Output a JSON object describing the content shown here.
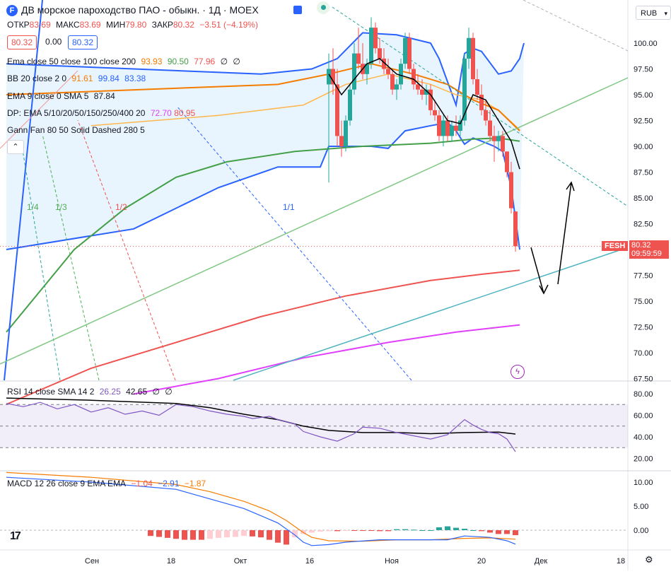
{
  "header": {
    "title": "ДВ морское пароходство ПАО - обыкн. · 1Д · MOEX",
    "ohlc": [
      {
        "label": "ОТКР",
        "value": "83.69"
      },
      {
        "label": "МАКС",
        "value": "83.69"
      },
      {
        "label": "МИН",
        "value": "79.80"
      },
      {
        "label": "ЗАКР",
        "value": "80.32"
      }
    ],
    "change": "−3.51 (−4.19%)",
    "bid": "80.32",
    "spread": "0.00",
    "ask": "80.32",
    "currency": "RUB",
    "logo_glyph": "F"
  },
  "legend": {
    "ema": {
      "label": "Ema close 50 close 100 close 200",
      "v1": "93.93",
      "v2": "90.50",
      "v3": "77.96",
      "v4": "∅",
      "v5": "∅"
    },
    "bb": {
      "label": "BB 20 close 2 0",
      "v1": "91.61",
      "v2": "99.84",
      "v3": "83.38"
    },
    "ema9": {
      "label": "EMA 9 close 0 SMA 5",
      "v1": "87.84"
    },
    "dp": {
      "label": "DP: EMA 5/10/20/50/150/250/400 20",
      "v1": "72.70",
      "v2": "80.95"
    },
    "gann": {
      "label": "Gann Fan 80 50 Solid Dashed 280 5"
    }
  },
  "price_label": {
    "ticker": "FESH",
    "price": "80.32",
    "countdown": "09:59:59"
  },
  "rsi": {
    "label": "RSI 14 close SMA 14 2",
    "v1": "26.25",
    "v2": "42.65",
    "v3": "∅",
    "v4": "∅"
  },
  "macd": {
    "label": "MACD 12 26 close 9 EMA EMA",
    "v1": "−1.04",
    "v2": "−2.91",
    "v3": "−1.87"
  },
  "fan_labels": [
    "1/4",
    "1/3",
    "1/2",
    "1/1"
  ],
  "colors": {
    "up": "#26a69a",
    "down": "#ef5350",
    "bb": "#2962ff",
    "ema50": "#f57c00",
    "ema100": "#4caf50",
    "ema200": "#ef5350",
    "dp": "#e040fb",
    "ema9": "#000000"
  },
  "chart_data": [
    {
      "type": "candlestick",
      "title": "ДВ морское пароходство ПАО - обыкн. · 1Д · MOEX",
      "ylim": [
        67.5,
        102.5
      ],
      "yticks": [
        "100.00",
        "97.50",
        "95.00",
        "92.50",
        "90.00",
        "87.50",
        "85.00",
        "82.50",
        "77.50",
        "75.00",
        "72.50",
        "70.00",
        "67.50"
      ],
      "xticks": [
        "Сен",
        "18",
        "Окт",
        "16",
        "Ноя",
        "20",
        "Дек",
        "18"
      ],
      "last_close": 80.32,
      "candles": [
        [
          18.0,
          96.0,
          99.0,
          86.5,
          97.5
        ],
        [
          18.5,
          97.5,
          99.5,
          95.0,
          96.0
        ],
        [
          19.0,
          96.0,
          97.5,
          90.0,
          91.0
        ],
        [
          19.5,
          91.0,
          92.5,
          89.0,
          90.0
        ],
        [
          20.0,
          90.0,
          93.0,
          89.5,
          92.5
        ],
        [
          20.5,
          92.5,
          96.0,
          92.0,
          95.5
        ],
        [
          21.0,
          95.5,
          100.0,
          95.0,
          99.0
        ],
        [
          21.5,
          99.0,
          101.5,
          97.5,
          98.0
        ],
        [
          22.0,
          98.0,
          100.0,
          96.5,
          97.0
        ],
        [
          22.5,
          97.0,
          98.5,
          96.0,
          98.0
        ],
        [
          23.0,
          98.0,
          102.5,
          97.5,
          101.5
        ],
        [
          23.5,
          101.5,
          102.0,
          99.0,
          99.5
        ],
        [
          24.0,
          99.5,
          100.5,
          98.0,
          98.5
        ],
        [
          24.5,
          98.5,
          99.5,
          97.0,
          97.5
        ],
        [
          25.0,
          97.5,
          98.5,
          96.5,
          97.0
        ],
        [
          25.5,
          97.0,
          97.5,
          95.0,
          95.5
        ],
        [
          26.0,
          95.5,
          96.5,
          94.5,
          96.0
        ],
        [
          26.5,
          96.0,
          98.5,
          95.5,
          98.0
        ],
        [
          27.0,
          98.0,
          101.0,
          97.5,
          100.5
        ],
        [
          27.5,
          100.5,
          101.0,
          97.0,
          97.5
        ],
        [
          28.0,
          97.5,
          98.0,
          95.5,
          96.0
        ],
        [
          28.5,
          96.0,
          97.0,
          95.0,
          95.5
        ],
        [
          29.0,
          95.5,
          96.5,
          94.5,
          95.0
        ],
        [
          29.5,
          95.0,
          96.0,
          94.0,
          95.5
        ],
        [
          30.0,
          95.5,
          96.0,
          93.0,
          93.5
        ],
        [
          30.5,
          93.5,
          94.5,
          92.5,
          93.0
        ],
        [
          31.0,
          93.0,
          93.5,
          90.5,
          91.0
        ],
        [
          31.5,
          91.0,
          93.0,
          90.0,
          92.5
        ],
        [
          32.0,
          92.5,
          93.0,
          90.5,
          91.0
        ],
        [
          32.5,
          91.0,
          92.5,
          90.5,
          92.0
        ],
        [
          33.0,
          92.0,
          93.0,
          91.0,
          91.5
        ],
        [
          33.5,
          91.5,
          93.0,
          91.0,
          92.5
        ],
        [
          34.0,
          92.5,
          99.0,
          92.0,
          98.5
        ],
        [
          34.5,
          98.5,
          101.5,
          97.5,
          100.5
        ],
        [
          35.0,
          100.5,
          101.0,
          96.0,
          96.5
        ],
        [
          35.5,
          96.5,
          97.5,
          94.5,
          95.0
        ],
        [
          36.0,
          95.0,
          96.0,
          93.0,
          93.5
        ],
        [
          36.5,
          93.5,
          94.5,
          92.0,
          92.5
        ],
        [
          37.0,
          92.5,
          93.5,
          90.5,
          91.0
        ],
        [
          37.5,
          91.0,
          92.0,
          88.5,
          90.5
        ],
        [
          38.0,
          90.5,
          91.5,
          89.5,
          91.0
        ],
        [
          38.5,
          91.0,
          91.5,
          89.0,
          89.5
        ],
        [
          39.0,
          89.5,
          89.5,
          87.0,
          87.5
        ],
        [
          39.5,
          87.5,
          88.5,
          83.5,
          84.0
        ],
        [
          40.0,
          83.69,
          83.69,
          79.8,
          80.32
        ]
      ]
    },
    {
      "type": "line",
      "title": "RSI 14 close SMA 14 2",
      "ylim": [
        15,
        85
      ],
      "yticks": [
        "80.00",
        "60.00",
        "40.00",
        "20.00"
      ],
      "bands": [
        70,
        50,
        30
      ],
      "series": [
        {
          "values": [
            [
              0,
              70.0
            ],
            [
              2.0,
              68.0
            ],
            [
              4.0,
              64.0
            ],
            [
              6.0,
              61.0
            ],
            [
              8.0,
              59.0
            ],
            [
              9.0,
              57.0
            ],
            [
              11.0,
              59.0
            ],
            [
              12.0,
              56.0
            ],
            [
              14.0,
              52.0
            ],
            [
              15.0,
              45.0
            ],
            [
              17.0,
              40.0
            ],
            [
              19.0,
              36.0
            ],
            [
              21.0,
              43.0
            ],
            [
              22.0,
              49.0
            ],
            [
              24.0,
              48.0
            ],
            [
              26.0,
              44.0
            ],
            [
              28.0,
              41.0
            ],
            [
              30.0,
              38.0
            ],
            [
              32.0,
              42.0
            ],
            [
              34.0,
              56.0
            ],
            [
              35.0,
              51.0
            ],
            [
              36.0,
              47.0
            ],
            [
              37.0,
              44.0
            ],
            [
              38.0,
              43.0
            ],
            [
              39.0,
              38.0
            ],
            [
              40.0,
              26.25
            ]
          ]
        },
        {
          "values": [
            [
              0,
              71.0
            ],
            [
              4.0,
              67.0
            ],
            [
              8.0,
              61.0
            ],
            [
              12.0,
              56.0
            ],
            [
              15.0,
              50.0
            ],
            [
              18.0,
              46.0
            ],
            [
              22.0,
              44.0
            ],
            [
              26.0,
              44.0
            ],
            [
              30.0,
              43.0
            ],
            [
              34.0,
              44.0
            ],
            [
              38.0,
              44.5
            ],
            [
              40.0,
              42.65
            ]
          ]
        }
      ]
    },
    {
      "type": "bar+line",
      "title": "MACD 12 26 close 9 EMA EMA",
      "ylim": [
        -4,
        13
      ],
      "yticks": [
        "10.00",
        "5.00",
        "0.00"
      ],
      "macd_line": [
        [
          0,
          8.5
        ],
        [
          3.0,
          7.0
        ],
        [
          6.0,
          5.5
        ],
        [
          8.0,
          4.5
        ],
        [
          10.0,
          3.0
        ],
        [
          12.0,
          1.5
        ],
        [
          14.0,
          -1.0
        ],
        [
          15.0,
          -2.5
        ],
        [
          16.0,
          -3.2
        ],
        [
          18.0,
          -3.0
        ],
        [
          20.0,
          -2.5
        ],
        [
          24.0,
          -2.0
        ],
        [
          28.0,
          -2.0
        ],
        [
          32.0,
          -2.0
        ],
        [
          34.0,
          -1.2
        ],
        [
          37.0,
          -1.5
        ],
        [
          39.0,
          -2.2
        ],
        [
          40.0,
          -2.91
        ]
      ],
      "signal_line": [
        [
          0,
          9.5
        ],
        [
          4.0,
          8.0
        ],
        [
          8.0,
          6.0
        ],
        [
          11.0,
          4.0
        ],
        [
          13.0,
          2.0
        ],
        [
          15.0,
          -0.5
        ],
        [
          16.0,
          -1.5
        ],
        [
          18.0,
          -2.2
        ],
        [
          22.0,
          -2.3
        ],
        [
          26.0,
          -2.0
        ],
        [
          30.0,
          -2.0
        ],
        [
          34.0,
          -1.7
        ],
        [
          37.0,
          -1.6
        ],
        [
          40.0,
          -1.87
        ]
      ],
      "histogram": [
        -1.2,
        -1.4,
        -1.6,
        -1.8,
        -2.0,
        -2.0,
        -2.0,
        -1.8,
        -1.6,
        -1.5,
        -1.4,
        -1.2,
        -1.3,
        -1.5,
        -2.0,
        -2.6,
        -3.0,
        -1.5,
        -0.8,
        -0.5,
        -0.3,
        -0.2,
        -0.2,
        -0.1,
        -0.1,
        -0.1,
        -0.1,
        -0.2,
        -0.2,
        0.2,
        0.2,
        0.1,
        0.0,
        0.0,
        0.6,
        0.8,
        0.5,
        0.3,
        0.0,
        -0.2,
        -0.5,
        -0.8,
        -0.8,
        -1.04
      ]
    }
  ]
}
